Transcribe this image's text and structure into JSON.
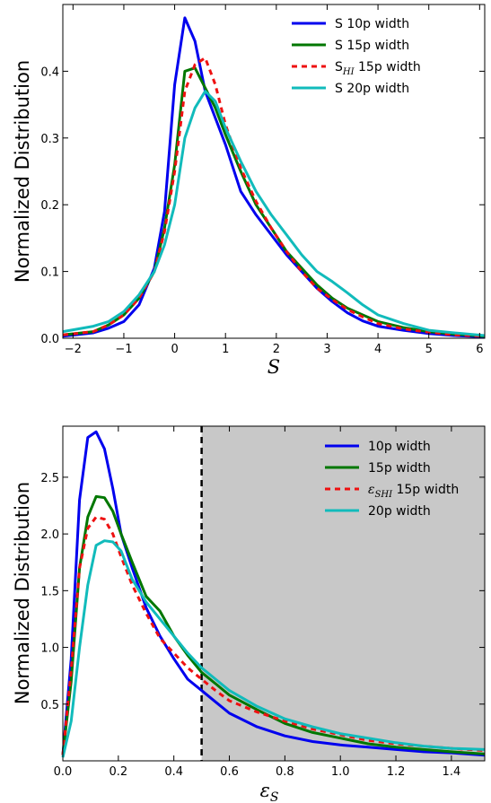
{
  "chart_data": [
    {
      "type": "line",
      "ylabel": "Normalized Distribution",
      "xlabel": "S",
      "xlim": [
        -2.2,
        6.1
      ],
      "ylim": [
        0,
        0.5
      ],
      "xticks": [
        "−2",
        "−1",
        "0",
        "1",
        "2",
        "3",
        "4",
        "5",
        "6"
      ],
      "yticks": [
        "0.0",
        "0.1",
        "0.2",
        "0.3",
        "0.4"
      ],
      "legend_position": "top-right",
      "series": [
        {
          "name": "S  10p width",
          "color": "#0000ee",
          "style": "solid",
          "x": [
            -2.2,
            -1.6,
            -1.3,
            -1.0,
            -0.7,
            -0.4,
            -0.2,
            0.0,
            0.2,
            0.4,
            0.6,
            0.8,
            1.0,
            1.3,
            1.6,
            1.9,
            2.2,
            2.5,
            2.8,
            3.1,
            3.4,
            3.7,
            4.0,
            4.5,
            5.0,
            5.5,
            6.1
          ],
          "y": [
            0.003,
            0.008,
            0.015,
            0.025,
            0.05,
            0.105,
            0.19,
            0.38,
            0.48,
            0.445,
            0.37,
            0.33,
            0.29,
            0.22,
            0.185,
            0.155,
            0.125,
            0.1,
            0.075,
            0.055,
            0.038,
            0.026,
            0.018,
            0.012,
            0.007,
            0.004,
            0.002
          ]
        },
        {
          "name": "S  15p width",
          "color": "#007700",
          "style": "solid",
          "x": [
            -2.2,
            -1.6,
            -1.3,
            -1.0,
            -0.7,
            -0.4,
            -0.2,
            0.0,
            0.2,
            0.4,
            0.6,
            0.8,
            1.0,
            1.3,
            1.6,
            1.9,
            2.2,
            2.5,
            2.8,
            3.1,
            3.4,
            3.7,
            4.0,
            4.5,
            5.0,
            5.5,
            6.1
          ],
          "y": [
            0.005,
            0.01,
            0.02,
            0.035,
            0.06,
            0.1,
            0.165,
            0.26,
            0.4,
            0.405,
            0.375,
            0.345,
            0.305,
            0.25,
            0.2,
            0.165,
            0.13,
            0.105,
            0.08,
            0.06,
            0.045,
            0.035,
            0.025,
            0.016,
            0.01,
            0.006,
            0.003
          ]
        },
        {
          "name": "S_HI  15p width",
          "color": "#ee1111",
          "style": "dashed",
          "x": [
            -2.2,
            -1.6,
            -1.3,
            -1.0,
            -0.7,
            -0.4,
            -0.2,
            0.0,
            0.2,
            0.4,
            0.6,
            0.8,
            1.0,
            1.3,
            1.6,
            1.9,
            2.2,
            2.5,
            2.8,
            3.1,
            3.4,
            3.7,
            4.0,
            4.5,
            5.0,
            5.5,
            6.1
          ],
          "y": [
            0.005,
            0.01,
            0.02,
            0.035,
            0.06,
            0.1,
            0.16,
            0.25,
            0.37,
            0.41,
            0.42,
            0.38,
            0.32,
            0.255,
            0.205,
            0.165,
            0.13,
            0.1,
            0.075,
            0.058,
            0.043,
            0.032,
            0.022,
            0.014,
            0.009,
            0.005,
            0.003
          ]
        },
        {
          "name": "S  20p width",
          "color": "#11bbbb",
          "style": "solid",
          "x": [
            -2.2,
            -1.6,
            -1.3,
            -1.0,
            -0.7,
            -0.4,
            -0.2,
            0.0,
            0.2,
            0.4,
            0.6,
            0.8,
            1.0,
            1.3,
            1.6,
            1.9,
            2.2,
            2.5,
            2.8,
            3.1,
            3.4,
            3.7,
            4.0,
            4.5,
            5.0,
            5.5,
            6.1
          ],
          "y": [
            0.01,
            0.018,
            0.025,
            0.04,
            0.065,
            0.1,
            0.14,
            0.2,
            0.3,
            0.345,
            0.37,
            0.355,
            0.315,
            0.265,
            0.22,
            0.185,
            0.155,
            0.125,
            0.1,
            0.085,
            0.068,
            0.05,
            0.035,
            0.022,
            0.012,
            0.008,
            0.004
          ]
        }
      ]
    },
    {
      "type": "line",
      "ylabel": "Normalized Distribution",
      "xlabel": "ε_S",
      "xlim": [
        0,
        1.52
      ],
      "ylim": [
        0,
        2.95
      ],
      "xticks": [
        "0.0",
        "0.2",
        "0.4",
        "0.6",
        "0.8",
        "1.0",
        "1.2",
        "1.4"
      ],
      "yticks": [
        "0.5",
        "1.0",
        "1.5",
        "2.0",
        "2.5"
      ],
      "threshold_x": 0.5,
      "shaded_region": [
        0.5,
        1.52
      ],
      "shaded_color": "#c8c8c8",
      "legend_position": "top-right",
      "series": [
        {
          "name": "10p width",
          "color": "#0000ee",
          "style": "solid",
          "x": [
            0.0,
            0.03,
            0.06,
            0.09,
            0.12,
            0.15,
            0.18,
            0.21,
            0.25,
            0.3,
            0.35,
            0.4,
            0.45,
            0.5,
            0.55,
            0.6,
            0.7,
            0.8,
            0.9,
            1.0,
            1.1,
            1.2,
            1.3,
            1.4,
            1.52
          ],
          "y": [
            0.05,
            0.9,
            2.3,
            2.85,
            2.9,
            2.75,
            2.4,
            2.0,
            1.7,
            1.35,
            1.1,
            0.9,
            0.72,
            0.62,
            0.52,
            0.42,
            0.3,
            0.22,
            0.17,
            0.14,
            0.12,
            0.1,
            0.08,
            0.07,
            0.05
          ]
        },
        {
          "name": "15p width",
          "color": "#007700",
          "style": "solid",
          "x": [
            0.0,
            0.03,
            0.06,
            0.09,
            0.12,
            0.15,
            0.18,
            0.21,
            0.25,
            0.3,
            0.35,
            0.4,
            0.45,
            0.5,
            0.55,
            0.6,
            0.7,
            0.8,
            0.9,
            1.0,
            1.1,
            1.2,
            1.3,
            1.4,
            1.52
          ],
          "y": [
            0.05,
            0.7,
            1.7,
            2.15,
            2.33,
            2.32,
            2.2,
            2.0,
            1.75,
            1.45,
            1.32,
            1.1,
            0.93,
            0.78,
            0.68,
            0.58,
            0.45,
            0.33,
            0.25,
            0.2,
            0.15,
            0.12,
            0.1,
            0.08,
            0.06
          ]
        },
        {
          "name": "ε_SHI 15p width",
          "color": "#ee1111",
          "style": "dashed",
          "x": [
            0.0,
            0.03,
            0.06,
            0.09,
            0.12,
            0.15,
            0.18,
            0.21,
            0.25,
            0.3,
            0.35,
            0.4,
            0.45,
            0.5,
            0.55,
            0.6,
            0.7,
            0.8,
            0.9,
            1.0,
            1.1,
            1.2,
            1.3,
            1.4,
            1.52
          ],
          "y": [
            0.05,
            0.8,
            1.7,
            2.05,
            2.15,
            2.13,
            2.0,
            1.8,
            1.55,
            1.3,
            1.08,
            0.95,
            0.82,
            0.72,
            0.62,
            0.53,
            0.43,
            0.35,
            0.28,
            0.23,
            0.18,
            0.15,
            0.13,
            0.11,
            0.09
          ]
        },
        {
          "name": "20p width",
          "color": "#11bbbb",
          "style": "solid",
          "x": [
            0.0,
            0.03,
            0.06,
            0.09,
            0.12,
            0.15,
            0.18,
            0.21,
            0.25,
            0.3,
            0.35,
            0.4,
            0.45,
            0.5,
            0.55,
            0.6,
            0.7,
            0.8,
            0.9,
            1.0,
            1.1,
            1.2,
            1.3,
            1.4,
            1.52
          ],
          "y": [
            0.03,
            0.35,
            1.0,
            1.55,
            1.9,
            1.94,
            1.93,
            1.85,
            1.6,
            1.4,
            1.25,
            1.1,
            0.95,
            0.82,
            0.72,
            0.62,
            0.48,
            0.37,
            0.3,
            0.24,
            0.2,
            0.16,
            0.13,
            0.11,
            0.1
          ]
        }
      ]
    }
  ]
}
